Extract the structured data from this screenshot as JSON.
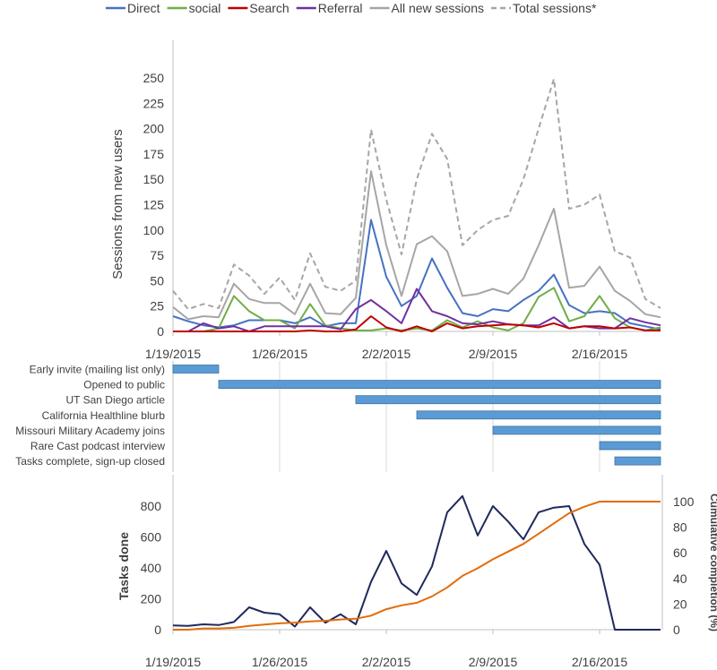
{
  "chart_data": [
    {
      "type": "line",
      "x": [
        "1/19/2015",
        "1/20/2015",
        "1/21/2015",
        "1/22/2015",
        "1/23/2015",
        "1/24/2015",
        "1/25/2015",
        "1/26/2015",
        "1/27/2015",
        "1/28/2015",
        "1/29/2015",
        "1/30/2015",
        "1/31/2015",
        "2/1/2015",
        "2/2/2015",
        "2/3/2015",
        "2/4/2015",
        "2/5/2015",
        "2/6/2015",
        "2/7/2015",
        "2/8/2015",
        "2/9/2015",
        "2/10/2015",
        "2/11/2015",
        "2/12/2015",
        "2/13/2015",
        "2/14/2015",
        "2/15/2015",
        "2/16/2015",
        "2/17/2015",
        "2/18/2015",
        "2/19/2015",
        "2/20/2015"
      ],
      "xticks": [
        "1/19/2015",
        "1/26/2015",
        "2/2/2015",
        "2/9/2015",
        "2/16/2015"
      ],
      "ylabel": "Sessions from new users",
      "ylim": [
        0,
        250
      ],
      "yticks": [
        0,
        25,
        50,
        75,
        100,
        125,
        150,
        175,
        200,
        225,
        250
      ],
      "legend": "top",
      "series": [
        {
          "name": "Direct",
          "color": "#4472c4",
          "dash": false,
          "values": [
            15,
            10,
            6,
            4,
            6,
            11,
            11,
            11,
            8,
            14,
            5,
            8,
            8,
            110,
            54,
            25,
            35,
            72,
            43,
            18,
            15,
            22,
            20,
            31,
            40,
            56,
            26,
            18,
            20,
            18,
            8,
            5,
            2
          ]
        },
        {
          "name": "social",
          "color": "#70ad47",
          "dash": false,
          "values": [
            0,
            0,
            0,
            3,
            35,
            20,
            11,
            11,
            3,
            27,
            6,
            3,
            1,
            1,
            3,
            1,
            3,
            1,
            11,
            4,
            10,
            4,
            1,
            8,
            34,
            43,
            10,
            15,
            35,
            13,
            4,
            1,
            4
          ]
        },
        {
          "name": "Search",
          "color": "#c00000",
          "dash": false,
          "values": [
            0,
            0,
            0,
            0,
            0,
            0,
            0,
            0,
            0,
            1,
            0,
            0,
            2,
            15,
            4,
            0,
            5,
            0,
            8,
            3,
            5,
            6,
            7,
            6,
            4,
            8,
            3,
            5,
            5,
            3,
            4,
            1,
            1
          ]
        },
        {
          "name": "Referral",
          "color": "#7030a0",
          "dash": false,
          "values": [
            0,
            0,
            8,
            3,
            5,
            0,
            5,
            5,
            5,
            5,
            5,
            2,
            22,
            31,
            20,
            8,
            42,
            20,
            15,
            8,
            7,
            10,
            7,
            6,
            6,
            14,
            3,
            5,
            3,
            3,
            13,
            9,
            6
          ]
        },
        {
          "name": "All new sessions",
          "color": "#a6a6a6",
          "dash": false,
          "values": [
            24,
            12,
            15,
            14,
            47,
            32,
            28,
            28,
            17,
            47,
            18,
            17,
            33,
            158,
            85,
            35,
            86,
            94,
            79,
            35,
            37,
            42,
            37,
            52,
            85,
            121,
            43,
            45,
            64,
            40,
            30,
            17,
            14
          ]
        },
        {
          "name": "Total sessions*",
          "color": "#a6a6a6",
          "dash": true,
          "values": [
            40,
            22,
            27,
            23,
            66,
            55,
            37,
            53,
            31,
            77,
            44,
            40,
            50,
            199,
            130,
            76,
            150,
            195,
            170,
            85,
            100,
            110,
            114,
            150,
            200,
            249,
            121,
            125,
            135,
            79,
            73,
            32,
            23
          ]
        }
      ]
    },
    {
      "type": "gantt",
      "color": "#5b9bd5",
      "tasks": [
        {
          "label": "Early invite (mailing list only)",
          "start": "1/19/2015",
          "end": "1/22/2015"
        },
        {
          "label": "Opened to public",
          "start": "1/22/2015",
          "end": "2/20/2015"
        },
        {
          "label": "UT San Diego article",
          "start": "1/31/2015",
          "end": "2/20/2015"
        },
        {
          "label": "California Healthline blurb",
          "start": "2/4/2015",
          "end": "2/20/2015"
        },
        {
          "label": "Missouri Military Academy joins",
          "start": "2/9/2015",
          "end": "2/20/2015"
        },
        {
          "label": "Rare Cast podcast interview",
          "start": "2/16/2015",
          "end": "2/20/2015"
        },
        {
          "label": "Tasks complete, sign-up closed",
          "start": "2/17/2015",
          "end": "2/20/2015"
        }
      ]
    },
    {
      "type": "line",
      "xticks": [
        "1/19/2015",
        "1/26/2015",
        "2/2/2015",
        "2/9/2015",
        "2/16/2015"
      ],
      "ylabel": "Tasks done",
      "y2label": "Cumulative completion (%)",
      "ylim": [
        0,
        1000
      ],
      "yticks": [
        0,
        200,
        400,
        600,
        800
      ],
      "y2lim": [
        0,
        120
      ],
      "y2ticks": [
        0,
        20,
        40,
        60,
        80,
        100
      ],
      "series": [
        {
          "axis": "left",
          "color": "#1f2a5c",
          "values": [
            28,
            25,
            35,
            30,
            50,
            145,
            110,
            100,
            20,
            145,
            45,
            100,
            35,
            310,
            510,
            300,
            225,
            410,
            760,
            865,
            610,
            800,
            700,
            585,
            760,
            790,
            800,
            555,
            420,
            0,
            0,
            0,
            0
          ]
        },
        {
          "axis": "right",
          "color": "#e36c0a",
          "values": [
            0,
            0,
            1,
            1,
            1.5,
            3,
            4,
            5,
            5.5,
            6.5,
            7,
            8,
            8.5,
            11,
            16,
            19,
            21,
            26,
            33,
            42,
            48,
            55,
            61,
            67,
            75,
            83,
            91,
            96,
            100,
            100,
            100,
            100,
            100
          ]
        }
      ]
    }
  ]
}
